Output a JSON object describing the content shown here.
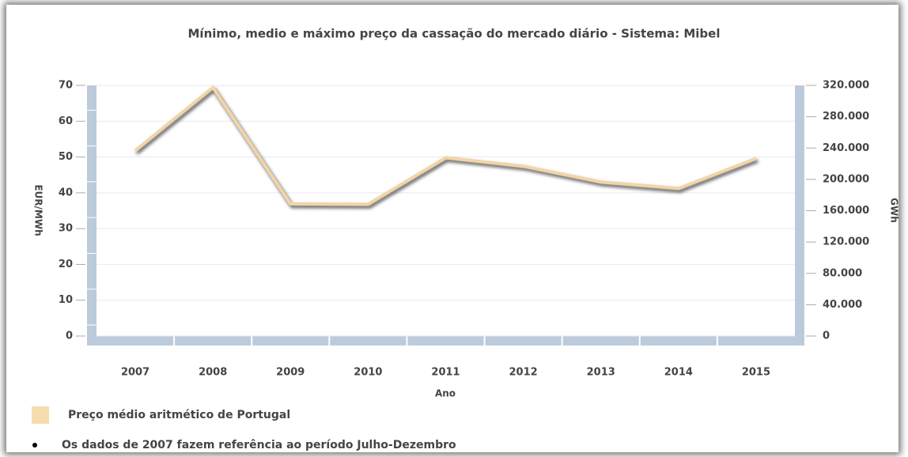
{
  "chart_data": {
    "type": "line",
    "title": "Mínimo, medio e máximo preço da cassação do mercado diário - Sistema: Mibel",
    "x_label": "Ano",
    "y_label": "EUR/MWh",
    "y2_label": "GWh",
    "categories": [
      "2007",
      "2008",
      "2009",
      "2010",
      "2011",
      "2012",
      "2013",
      "2014",
      "2015"
    ],
    "series": [
      {
        "name": "Preço médio aritmético de Portugal",
        "color": "#f2d5a6",
        "values": [
          51.8,
          69.4,
          36.9,
          36.8,
          49.8,
          47.4,
          43.0,
          41.2,
          49.6
        ]
      }
    ],
    "ylim": [
      0,
      70
    ],
    "yticks": [
      0,
      10,
      20,
      30,
      40,
      50,
      60,
      70
    ],
    "y2lim": [
      0,
      320000
    ],
    "y2ticks": [
      {
        "value": 0,
        "label": "0"
      },
      {
        "value": 40000,
        "label": "40.000"
      },
      {
        "value": 80000,
        "label": "80.000"
      },
      {
        "value": 120000,
        "label": "120.000"
      },
      {
        "value": 160000,
        "label": "160.000"
      },
      {
        "value": 200000,
        "label": "200.000"
      },
      {
        "value": 240000,
        "label": "240.000"
      },
      {
        "value": 280000,
        "label": "280.000"
      },
      {
        "value": 320000,
        "label": "320.000"
      }
    ],
    "grid": true,
    "note": "Os dados de 2007 fazem referência ao período Julho-Dezembro"
  }
}
